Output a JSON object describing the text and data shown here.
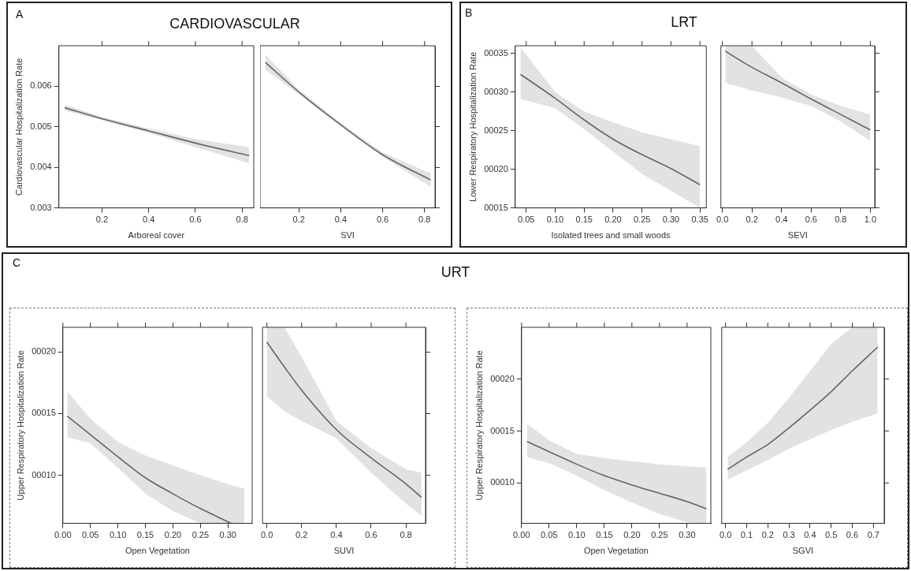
{
  "chart_data": [
    {
      "type": "line",
      "title": "CARDIOVASCULAR",
      "ylabel": "Cardiovascular Hospitalization Rate",
      "xlabel": "Arboreal cover",
      "annotations": [
        "A"
      ],
      "x": [
        0.04,
        0.2,
        0.4,
        0.6,
        0.83
      ],
      "series": [
        {
          "color": "#666666",
          "values": [
            0.00547,
            0.0052,
            0.0049,
            0.0046,
            0.00429
          ],
          "lower": [
            0.0054,
            0.00516,
            0.00485,
            0.0045,
            0.0041
          ],
          "upper": [
            0.00555,
            0.00524,
            0.00496,
            0.0047,
            0.0045
          ]
        }
      ],
      "xlim": [
        0.015,
        0.85
      ],
      "xticks": [
        0.2,
        0.4,
        0.6,
        0.8
      ],
      "ylim": [
        0.003,
        0.007
      ],
      "yticks": [
        0.003,
        0.004,
        0.005,
        0.006
      ]
    },
    {
      "type": "line",
      "xlabel": "SVI",
      "x": [
        0.04,
        0.2,
        0.4,
        0.6,
        0.83
      ],
      "series": [
        {
          "color": "#666666",
          "values": [
            0.00659,
            0.00586,
            0.00505,
            0.00431,
            0.00369
          ],
          "lower": [
            0.0064,
            0.00581,
            0.00501,
            0.00426,
            0.00352
          ],
          "upper": [
            0.00678,
            0.00592,
            0.00509,
            0.00437,
            0.00385
          ]
        }
      ],
      "xlim": [
        0.015,
        0.85
      ],
      "xticks": [
        0.2,
        0.4,
        0.6,
        0.8
      ],
      "ylim": [
        0.003,
        0.007
      ],
      "yticks": [
        0.003,
        0.004,
        0.005,
        0.006
      ],
      "tick_labels": "x"
    },
    {
      "type": "line",
      "title": "LRT",
      "ylabel": "Lower Respiratory Hospitalization Rate",
      "xlabel": "Isolated trees and small woods",
      "annotations": [
        "B"
      ],
      "x": [
        0.04,
        0.1,
        0.15,
        0.2,
        0.25,
        0.3,
        0.35
      ],
      "series": [
        {
          "color": "#666666",
          "values": [
            32.3,
            29.2,
            26.4,
            23.9,
            21.9,
            20.1,
            18.0
          ],
          "lower": [
            29.1,
            27.9,
            25.2,
            22.3,
            19.4,
            17.2,
            15
          ],
          "upper": [
            35.8,
            30,
            27.5,
            26.1,
            24.8,
            23.9,
            23
          ]
        }
      ],
      "xlim": [
        0.031,
        0.361
      ],
      "xticks": [
        0.05,
        {
          "value": 0.1,
          "label": "0.10"
        },
        0.15,
        {
          "value": 0.2,
          "label": "0.20"
        },
        0.25,
        {
          "value": 0.3,
          "label": "0.30"
        },
        0.35
      ],
      "ylim": [
        15,
        36
      ],
      "yticks": [
        {
          "value": 15,
          "label": "00015"
        },
        {
          "value": 20,
          "label": "00020"
        },
        {
          "value": 25,
          "label": "00025"
        },
        {
          "value": 30,
          "label": "00030"
        },
        {
          "value": 35,
          "label": "00035"
        }
      ]
    },
    {
      "type": "line",
      "xlabel": "SEVI",
      "x": [
        0.02,
        0.2,
        0.4,
        0.6,
        0.8,
        1.0
      ],
      "series": [
        {
          "color": "#666666",
          "values": [
            35.3,
            33.2,
            31.2,
            29.1,
            27.1,
            25.1
          ],
          "lower": [
            31.2,
            30.2,
            29.3,
            28.2,
            26.2,
            23.7
          ],
          "upper": [
            36,
            36,
            31.9,
            29.7,
            28.2,
            27.1
          ]
        }
      ],
      "xlim": [
        -0.01,
        1.03
      ],
      "xticks": [
        {
          "value": 0,
          "label": "0.0"
        },
        0.2,
        0.4,
        0.6,
        0.8,
        {
          "value": 1,
          "label": "1.0"
        }
      ],
      "ylim": [
        15,
        36
      ],
      "yticks": [
        15,
        20,
        25,
        30,
        35
      ],
      "tick_labels": "x"
    },
    {
      "type": "line",
      "ylabel": "Upper Respiratory Hospitalization Rate",
      "xlabel": "Open Vegetation",
      "annotations": [
        "C"
      ],
      "x": [
        0.008,
        0.05,
        0.1,
        0.15,
        0.2,
        0.25,
        0.306,
        0.33
      ],
      "series": [
        {
          "color": "#666666",
          "values": [
            14.8,
            13.3,
            11.5,
            9.8,
            8.5,
            7.3,
            6.1,
            null
          ],
          "lower": [
            13.1,
            12.6,
            10.6,
            8.5,
            7.1,
            6.1,
            6.1,
            6.1
          ],
          "upper": [
            16.8,
            14.6,
            12.7,
            11.6,
            10.8,
            10,
            9.2,
            8.9
          ]
        }
      ],
      "xlim": [
        0,
        0.344
      ],
      "xticks": [
        {
          "value": 0,
          "label": "0.00"
        },
        0.05,
        {
          "value": 0.1,
          "label": "0.10"
        },
        0.15,
        {
          "value": 0.2,
          "label": "0.20"
        },
        0.25,
        {
          "value": 0.3,
          "label": "0.30"
        }
      ],
      "ylim": [
        6.1,
        22
      ],
      "yticks": [
        {
          "value": 10,
          "label": "00010"
        },
        {
          "value": 15,
          "label": "00015"
        },
        {
          "value": 20,
          "label": "00020"
        }
      ]
    },
    {
      "type": "line",
      "xlabel": "SUVI",
      "x": [
        0,
        0.1,
        0.2,
        0.4,
        0.6,
        0.8,
        0.89
      ],
      "series": [
        {
          "color": "#666666",
          "values": [
            20.8,
            18.8,
            16.9,
            13.7,
            11.4,
            9.3,
            8.2
          ],
          "lower": [
            16.4,
            15.2,
            14.4,
            13,
            10.2,
            7.7,
            6.7
          ],
          "upper": [
            22,
            22,
            19.6,
            14.4,
            12.2,
            10.5,
            10.2
          ]
        }
      ],
      "xlim": [
        -0.025,
        0.913
      ],
      "xticks": [
        {
          "value": 0,
          "label": "0.0"
        },
        0.2,
        0.4,
        0.6,
        0.8
      ],
      "ylim": [
        6.1,
        22
      ],
      "yticks": [
        10,
        15,
        20
      ],
      "tick_labels": "x"
    },
    {
      "type": "line",
      "title": "URT",
      "ylabel": "Upper Respiratory Hospitalization Rate",
      "xlabel": "Open Vegetation",
      "x": [
        0.01,
        0.05,
        0.1,
        0.15,
        0.2,
        0.25,
        0.3,
        0.335
      ],
      "series": [
        {
          "color": "#666666",
          "values": [
            14,
            13,
            11.8,
            10.7,
            9.8,
            9,
            8.2,
            7.5
          ],
          "lower": [
            12.5,
            11.9,
            10.7,
            9.3,
            8.1,
            7,
            6.2,
            6.1
          ],
          "upper": [
            15.7,
            14.1,
            12.8,
            12.4,
            12.1,
            11.8,
            11.6,
            11.5
          ]
        }
      ],
      "xlim": [
        0,
        0.343
      ],
      "xticks": [
        {
          "value": 0,
          "label": "0.00"
        },
        0.05,
        {
          "value": 0.1,
          "label": "0.10"
        },
        0.15,
        {
          "value": 0.2,
          "label": "0.20"
        },
        0.25,
        {
          "value": 0.3,
          "label": "0.30"
        }
      ],
      "ylim": [
        6.1,
        25
      ],
      "yticks": [
        {
          "value": 10,
          "label": "00010"
        },
        {
          "value": 15,
          "label": "00015"
        },
        {
          "value": 20,
          "label": "00020"
        }
      ]
    },
    {
      "type": "line",
      "xlabel": "SGVI",
      "x": [
        0.01,
        0.1,
        0.2,
        0.3,
        0.4,
        0.5,
        0.6,
        0.72
      ],
      "series": [
        {
          "color": "#666666",
          "values": [
            11.3,
            12.5,
            13.7,
            15.3,
            17,
            18.8,
            20.8,
            23.1
          ],
          "lower": [
            10.3,
            11.2,
            12.2,
            13.3,
            14.2,
            15.1,
            15.9,
            16.7
          ],
          "upper": [
            12.5,
            13.9,
            15.8,
            18.2,
            20.8,
            23.4,
            25,
            25
          ]
        }
      ],
      "xlim": [
        -0.018,
        0.751
      ],
      "xticks": [
        {
          "value": 0,
          "label": "0.0"
        },
        0.1,
        0.2,
        0.3,
        0.4,
        0.5,
        0.6,
        0.7
      ],
      "ylim": [
        6.1,
        25
      ],
      "yticks": [
        10,
        15,
        20
      ],
      "tick_labels": "x"
    }
  ]
}
